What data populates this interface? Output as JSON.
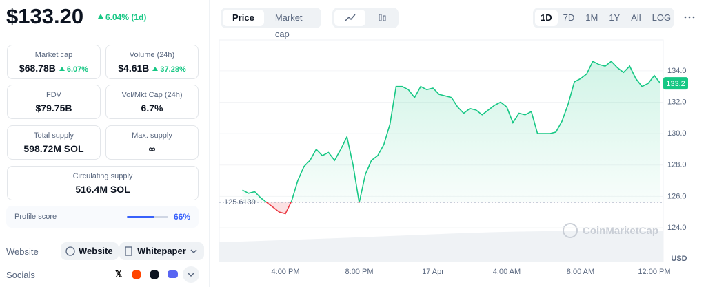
{
  "header": {
    "price": "$133.20",
    "change": "6.04% (1d)"
  },
  "stats": [
    {
      "label": "Market cap",
      "value": "$68.78B",
      "change": "6.07%"
    },
    {
      "label": "Volume (24h)",
      "value": "$4.61B",
      "change": "37.28%"
    },
    {
      "label": "FDV",
      "value": "$79.75B"
    },
    {
      "label": "Vol/Mkt Cap (24h)",
      "value": "6.7%"
    },
    {
      "label": "Total supply",
      "value": "598.72M SOL"
    },
    {
      "label": "Max. supply",
      "value": "∞"
    },
    {
      "label": "Circulating supply",
      "value": "516.4M SOL"
    }
  ],
  "profile": {
    "label": "Profile score",
    "score": 66,
    "score_label": "66%"
  },
  "links": {
    "label": "Website",
    "buttons": [
      "Website",
      "Whitepaper"
    ]
  },
  "socials": {
    "label": "Socials"
  },
  "tabs": [
    "Price",
    "Market cap"
  ],
  "ranges": [
    "1D",
    "7D",
    "1M",
    "1Y",
    "All",
    "LOG"
  ],
  "chart_data": {
    "type": "line",
    "categories": [
      null,
      null,
      null,
      null,
      null,
      null,
      null,
      "4:00 PM",
      null,
      null,
      null,
      null,
      null,
      null,
      null,
      null,
      null,
      null,
      null,
      "8:00 PM",
      null,
      null,
      null,
      null,
      null,
      null,
      null,
      null,
      null,
      null,
      null,
      "17 Apr",
      null,
      null,
      null,
      null,
      null,
      null,
      null,
      null,
      null,
      null,
      null,
      "4:00 AM",
      null,
      null,
      null,
      null,
      null,
      null,
      null,
      null,
      null,
      null,
      null,
      "8:00 AM",
      null,
      null,
      null,
      null,
      null,
      null,
      null,
      null,
      null,
      null,
      null,
      "12:00 PM",
      null
    ],
    "values": [
      126.4,
      126.2,
      126.3,
      125.9,
      125.6,
      125.3,
      125.0,
      124.9,
      125.7,
      127.0,
      127.9,
      128.3,
      129.0,
      128.6,
      128.8,
      128.3,
      129.0,
      129.8,
      128.0,
      125.6,
      127.4,
      128.3,
      128.6,
      129.3,
      130.6,
      133.0,
      133.0,
      132.8,
      132.3,
      133.0,
      132.8,
      132.9,
      132.5,
      132.4,
      132.3,
      131.7,
      131.3,
      131.6,
      131.5,
      131.2,
      131.5,
      131.8,
      132.0,
      131.7,
      130.7,
      131.3,
      131.2,
      131.4,
      130.0,
      130.0,
      130.0,
      130.1,
      130.8,
      131.9,
      133.3,
      133.5,
      133.8,
      134.6,
      134.4,
      134.3,
      134.6,
      134.2,
      133.9,
      134.3,
      133.5,
      133.0,
      133.2,
      133.7,
      133.2
    ],
    "color": "#16c784",
    "below_color": "#ea3943",
    "ylim": [
      121.85,
      135.97
    ],
    "yticks": [
      {
        "value": 124,
        "label": "124.0"
      },
      {
        "value": 126,
        "label": "126.0"
      },
      {
        "value": 128,
        "label": "128.0"
      },
      {
        "value": 130,
        "label": "130.0"
      },
      {
        "value": 132,
        "label": "132.0"
      },
      {
        "value": 134,
        "label": "134.0"
      }
    ],
    "grid": true,
    "baseline": 125.6139,
    "last_price": 133.2,
    "currency": "USD",
    "watermark": "CoinMarketCap"
  }
}
